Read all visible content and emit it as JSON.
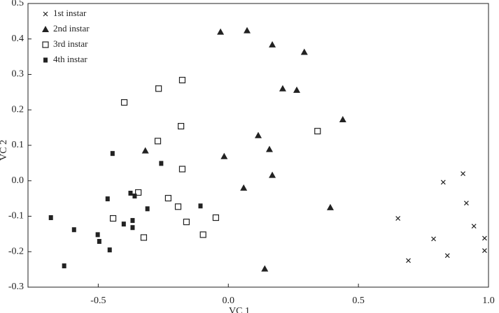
{
  "chart_data": {
    "type": "scatter",
    "x_label": "VC 1",
    "y_label": "VC 2",
    "xlim": [
      -0.77,
      1.0
    ],
    "ylim": [
      -0.3,
      0.5
    ],
    "xticks": [
      -0.5,
      {
        "value": 0,
        "label": "0.0"
      },
      0.5,
      {
        "value": 1,
        "label": "1.0"
      }
    ],
    "yticks": [
      -0.3,
      -0.2,
      -0.1,
      {
        "value": 0,
        "label": "0.0"
      },
      0.1,
      0.2,
      0.3,
      0.4,
      0.5
    ],
    "legend": "upper left",
    "series": [
      {
        "name": "1st instar",
        "marker": "x",
        "color": "#222",
        "x": [
          0.652,
          0.826,
          0.902,
          0.915,
          0.944,
          0.789,
          0.985,
          0.692,
          0.842,
          0.985
        ],
        "values": [
          -0.106,
          -0.004,
          0.02,
          -0.063,
          -0.128,
          -0.164,
          -0.162,
          -0.225,
          -0.211,
          -0.197
        ]
      },
      {
        "name": "2nd instar",
        "marker": "triangle",
        "color": "#222",
        "x": [
          -0.03,
          0.072,
          0.169,
          0.292,
          0.209,
          0.263,
          0.44,
          0.115,
          0.158,
          -0.016,
          -0.319,
          0.169,
          0.059,
          0.392,
          0.14
        ],
        "values": [
          0.42,
          0.424,
          0.384,
          0.363,
          0.26,
          0.256,
          0.173,
          0.128,
          0.089,
          0.069,
          0.085,
          0.016,
          -0.02,
          -0.075,
          -0.248
        ]
      },
      {
        "name": "3rd instar",
        "marker": "open-square",
        "color": "#222",
        "x": [
          -0.4,
          -0.268,
          -0.177,
          -0.182,
          -0.271,
          -0.177,
          0.343,
          -0.346,
          -0.231,
          -0.193,
          -0.443,
          -0.161,
          -0.048,
          -0.097,
          -0.325
        ],
        "values": [
          0.221,
          0.26,
          0.284,
          0.154,
          0.112,
          0.033,
          0.14,
          -0.033,
          -0.049,
          -0.073,
          -0.106,
          -0.116,
          -0.104,
          -0.152,
          -0.16
        ]
      },
      {
        "name": "4th instar",
        "marker": "filled-square",
        "color": "#222",
        "x": [
          -0.445,
          -0.258,
          -0.682,
          -0.464,
          -0.376,
          -0.36,
          -0.311,
          -0.402,
          -0.368,
          -0.368,
          -0.107,
          -0.593,
          -0.502,
          -0.496,
          -0.456,
          -0.631
        ],
        "values": [
          0.077,
          0.049,
          -0.104,
          -0.051,
          -0.035,
          -0.043,
          -0.079,
          -0.122,
          -0.112,
          -0.132,
          -0.071,
          -0.138,
          -0.152,
          -0.171,
          -0.195,
          -0.24
        ]
      }
    ]
  }
}
